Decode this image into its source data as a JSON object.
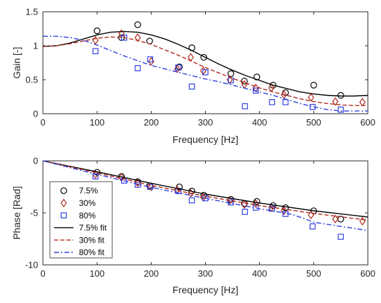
{
  "colors": {
    "black": "#000000",
    "red": "#b0281c",
    "blue": "#2f3fe0"
  },
  "chart_data": [
    {
      "type": "line",
      "xlabel": "Frequency [Hz]",
      "ylabel": "Gain [-]",
      "xlim": [
        0,
        600
      ],
      "ylim": [
        0,
        1.5
      ],
      "xticks": [
        "0",
        "100",
        "200",
        "300",
        "400",
        "500",
        "600"
      ],
      "yticks": [
        "0",
        "0.5",
        "1",
        "1.5"
      ],
      "grid": false,
      "series": [
        {
          "name": "7.5%",
          "kind": "marker",
          "marker": "circle",
          "color": "#000000",
          "x": [
            100,
            145,
            175,
            197,
            252,
            275,
            297,
            347,
            372,
            395,
            425,
            448,
            500,
            550
          ],
          "y": [
            1.22,
            1.12,
            1.31,
            1.07,
            0.69,
            0.97,
            0.83,
            0.59,
            0.48,
            0.54,
            0.42,
            0.31,
            0.42,
            0.27
          ]
        },
        {
          "name": "30%",
          "kind": "marker",
          "marker": "diamond",
          "color": "#b0281c",
          "x": [
            97,
            145,
            175,
            200,
            248,
            273,
            296,
            345,
            372,
            393,
            422,
            445,
            495,
            540,
            590
          ],
          "y": [
            1.08,
            1.18,
            1.12,
            0.77,
            0.66,
            0.83,
            0.63,
            0.5,
            0.43,
            0.38,
            0.38,
            0.28,
            0.24,
            0.18,
            0.17
          ]
        },
        {
          "name": "80%",
          "kind": "marker",
          "marker": "square",
          "color": "#2f3fe0",
          "x": [
            97,
            150,
            175,
            198,
            250,
            275,
            300,
            347,
            373,
            393,
            423,
            448,
            498,
            550
          ],
          "y": [
            0.92,
            1.12,
            0.67,
            0.8,
            0.68,
            0.4,
            0.61,
            0.49,
            0.11,
            0.34,
            0.17,
            0.17,
            0.1,
            0.06
          ]
        },
        {
          "name": "7.5% fit",
          "kind": "line",
          "style": "solid",
          "color": "#000000",
          "x": [
            0,
            25,
            50,
            75,
            100,
            125,
            150,
            175,
            200,
            225,
            250,
            275,
            300,
            325,
            350,
            375,
            400,
            425,
            450,
            475,
            500,
            525,
            550,
            575,
            600
          ],
          "y": [
            0.99,
            1.0,
            1.04,
            1.1,
            1.16,
            1.2,
            1.21,
            1.2,
            1.16,
            1.1,
            1.02,
            0.93,
            0.83,
            0.73,
            0.64,
            0.56,
            0.49,
            0.42,
            0.37,
            0.32,
            0.29,
            0.27,
            0.26,
            0.26,
            0.27
          ]
        },
        {
          "name": "30% fit",
          "kind": "line",
          "style": "dashed",
          "color": "#b0281c",
          "x": [
            0,
            25,
            50,
            75,
            100,
            125,
            150,
            175,
            200,
            225,
            250,
            275,
            300,
            325,
            350,
            375,
            400,
            425,
            450,
            475,
            500,
            525,
            550,
            575,
            600
          ],
          "y": [
            0.99,
            1.0,
            1.03,
            1.07,
            1.11,
            1.13,
            1.12,
            1.08,
            1.02,
            0.94,
            0.86,
            0.77,
            0.68,
            0.6,
            0.52,
            0.45,
            0.38,
            0.32,
            0.27,
            0.22,
            0.18,
            0.15,
            0.13,
            0.12,
            0.12
          ]
        },
        {
          "name": "80% fit",
          "kind": "line",
          "style": "dashdot",
          "color": "#2f3fe0",
          "x": [
            0,
            25,
            50,
            75,
            100,
            125,
            150,
            175,
            200,
            225,
            250,
            275,
            300,
            325,
            350,
            375,
            400,
            425,
            450,
            475,
            500,
            525,
            550,
            575,
            600
          ],
          "y": [
            1.14,
            1.14,
            1.12,
            1.08,
            1.01,
            0.93,
            0.85,
            0.78,
            0.71,
            0.66,
            0.61,
            0.56,
            0.51,
            0.47,
            0.42,
            0.37,
            0.32,
            0.27,
            0.21,
            0.15,
            0.1,
            0.06,
            0.04,
            0.04,
            0.04
          ]
        }
      ]
    },
    {
      "type": "line",
      "xlabel": "Frequency [Hz]",
      "ylabel": "Phase [Rad]",
      "xlim": [
        0,
        600
      ],
      "ylim": [
        -10,
        0
      ],
      "xticks": [
        "0",
        "100",
        "200",
        "300",
        "400",
        "500",
        "600"
      ],
      "yticks": [
        "-10",
        "-5",
        "0"
      ],
      "grid": false,
      "legend_position": "bottom-left",
      "series": [
        {
          "name": "7.5%",
          "kind": "marker",
          "marker": "circle",
          "color": "#000000",
          "x": [
            100,
            145,
            175,
            197,
            252,
            275,
            297,
            347,
            372,
            395,
            425,
            448,
            500,
            550
          ],
          "y": [
            -1.1,
            -1.5,
            -2.0,
            -2.4,
            -2.5,
            -2.9,
            -3.3,
            -3.7,
            -4.1,
            -3.9,
            -4.3,
            -4.5,
            -4.8,
            -5.6
          ]
        },
        {
          "name": "30%",
          "kind": "marker",
          "marker": "diamond",
          "color": "#b0281c",
          "x": [
            97,
            145,
            175,
            200,
            248,
            273,
            296,
            345,
            372,
            393,
            422,
            445,
            495,
            540,
            590
          ],
          "y": [
            -1.3,
            -1.6,
            -2.1,
            -2.5,
            -2.8,
            -3.1,
            -3.5,
            -3.8,
            -4.2,
            -4.1,
            -4.5,
            -4.8,
            -5.2,
            -5.6,
            -5.8
          ]
        },
        {
          "name": "80%",
          "kind": "marker",
          "marker": "square",
          "color": "#2f3fe0",
          "x": [
            97,
            150,
            175,
            198,
            250,
            275,
            300,
            347,
            373,
            393,
            423,
            448,
            498,
            550
          ],
          "y": [
            -1.5,
            -1.9,
            -2.3,
            -2.5,
            -2.9,
            -3.8,
            -3.6,
            -4.0,
            -4.9,
            -4.5,
            -4.6,
            -5.1,
            -6.3,
            -7.3
          ]
        },
        {
          "name": "7.5% fit",
          "kind": "line",
          "style": "solid",
          "color": "#000000",
          "x": [
            0,
            100,
            200,
            300,
            400,
            500,
            600
          ],
          "y": [
            0,
            -1.05,
            -2.15,
            -3.2,
            -4.05,
            -4.8,
            -5.4
          ]
        },
        {
          "name": "30% fit",
          "kind": "line",
          "style": "dashed",
          "color": "#b0281c",
          "x": [
            0,
            100,
            200,
            300,
            400,
            500,
            600
          ],
          "y": [
            0,
            -1.15,
            -2.35,
            -3.4,
            -4.3,
            -5.05,
            -5.7
          ]
        },
        {
          "name": "80% fit",
          "kind": "line",
          "style": "dashdot",
          "color": "#2f3fe0",
          "x": [
            0,
            100,
            200,
            300,
            350,
            400,
            440,
            460,
            480,
            500,
            550,
            600
          ],
          "y": [
            0,
            -1.3,
            -2.55,
            -3.6,
            -4.1,
            -4.6,
            -4.95,
            -5.15,
            -5.5,
            -5.9,
            -6.3,
            -6.7
          ]
        }
      ]
    }
  ]
}
